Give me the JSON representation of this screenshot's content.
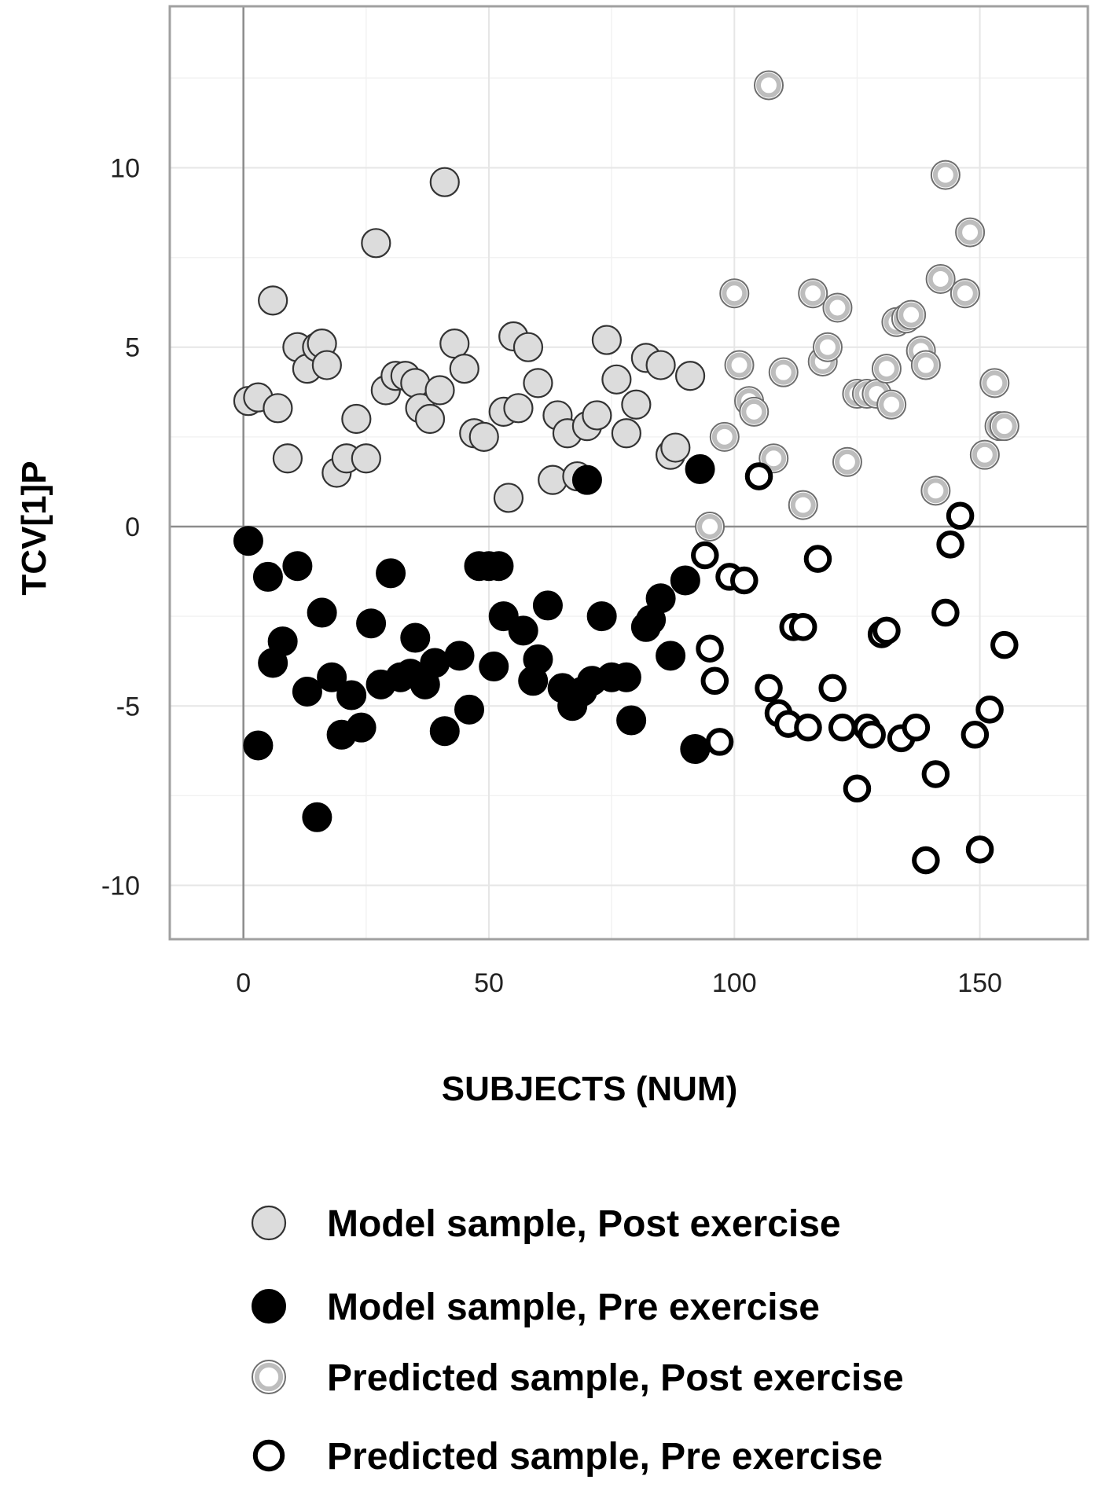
{
  "chart_data": {
    "type": "scatter",
    "title": "",
    "xlabel": "SUBJECTS (NUM)",
    "ylabel": "TCV[1]P",
    "xlim": [
      -15,
      172
    ],
    "ylim": [
      -11.5,
      14.5
    ],
    "xticks": [
      0,
      50,
      100,
      150
    ],
    "yticks": [
      10,
      5,
      0,
      -5,
      -10
    ],
    "grid": true,
    "zero_lines": true,
    "legend_position": "bottom",
    "series": [
      {
        "name": "Model sample, Post exercise",
        "style": "filled-light",
        "color": "#d9d9d9",
        "points": [
          [
            1,
            3.5
          ],
          [
            3,
            3.6
          ],
          [
            6,
            6.3
          ],
          [
            7,
            3.3
          ],
          [
            9,
            1.9
          ],
          [
            11,
            5.0
          ],
          [
            13,
            4.4
          ],
          [
            15,
            5.0
          ],
          [
            16,
            5.1
          ],
          [
            17,
            4.5
          ],
          [
            19,
            1.5
          ],
          [
            21,
            1.9
          ],
          [
            23,
            3.0
          ],
          [
            25,
            1.9
          ],
          [
            27,
            7.9
          ],
          [
            29,
            3.8
          ],
          [
            31,
            4.2
          ],
          [
            33,
            4.2
          ],
          [
            35,
            4.0
          ],
          [
            36,
            3.3
          ],
          [
            38,
            3.0
          ],
          [
            40,
            3.8
          ],
          [
            41,
            9.6
          ],
          [
            43,
            5.1
          ],
          [
            45,
            4.4
          ],
          [
            47,
            2.6
          ],
          [
            49,
            2.5
          ],
          [
            53,
            3.2
          ],
          [
            54,
            0.8
          ],
          [
            55,
            5.3
          ],
          [
            56,
            3.3
          ],
          [
            58,
            5.0
          ],
          [
            60,
            4.0
          ],
          [
            63,
            1.3
          ],
          [
            64,
            3.1
          ],
          [
            66,
            2.6
          ],
          [
            68,
            1.4
          ],
          [
            70,
            2.8
          ],
          [
            72,
            3.1
          ],
          [
            74,
            5.2
          ],
          [
            76,
            4.1
          ],
          [
            78,
            2.6
          ],
          [
            80,
            3.4
          ],
          [
            82,
            4.7
          ],
          [
            85,
            4.5
          ],
          [
            87,
            2.0
          ],
          [
            88,
            2.2
          ],
          [
            91,
            4.2
          ]
        ]
      },
      {
        "name": "Model sample, Pre exercise",
        "style": "filled-dark",
        "color": "#000000",
        "points": [
          [
            1,
            -0.4
          ],
          [
            3,
            -6.1
          ],
          [
            5,
            -1.4
          ],
          [
            6,
            -3.8
          ],
          [
            8,
            -3.2
          ],
          [
            11,
            -1.1
          ],
          [
            13,
            -4.6
          ],
          [
            15,
            -8.1
          ],
          [
            16,
            -2.4
          ],
          [
            18,
            -4.2
          ],
          [
            20,
            -5.8
          ],
          [
            22,
            -4.7
          ],
          [
            24,
            -5.6
          ],
          [
            26,
            -2.7
          ],
          [
            28,
            -4.4
          ],
          [
            30,
            -1.3
          ],
          [
            32,
            -4.2
          ],
          [
            34,
            -4.1
          ],
          [
            35,
            -3.1
          ],
          [
            37,
            -4.4
          ],
          [
            39,
            -3.8
          ],
          [
            41,
            -5.7
          ],
          [
            44,
            -3.6
          ],
          [
            46,
            -5.1
          ],
          [
            48,
            -1.1
          ],
          [
            50,
            -1.1
          ],
          [
            51,
            -3.9
          ],
          [
            52,
            -1.1
          ],
          [
            53,
            -2.5
          ],
          [
            57,
            -2.9
          ],
          [
            59,
            -4.3
          ],
          [
            60,
            -3.7
          ],
          [
            62,
            -2.2
          ],
          [
            65,
            -4.5
          ],
          [
            67,
            -5.0
          ],
          [
            69,
            -4.6
          ],
          [
            70,
            1.3
          ],
          [
            71,
            -4.3
          ],
          [
            73,
            -2.5
          ],
          [
            75,
            -4.2
          ],
          [
            78,
            -4.2
          ],
          [
            79,
            -5.4
          ],
          [
            82,
            -2.8
          ],
          [
            83,
            -2.6
          ],
          [
            85,
            -2.0
          ],
          [
            87,
            -3.6
          ],
          [
            90,
            -1.5
          ],
          [
            92,
            -6.2
          ],
          [
            93,
            1.6
          ]
        ]
      },
      {
        "name": "Predicted sample, Post exercise",
        "style": "ring-light",
        "color": "#a6a6a6",
        "points": [
          [
            95,
            0.0
          ],
          [
            98,
            2.5
          ],
          [
            100,
            6.5
          ],
          [
            101,
            4.5
          ],
          [
            103,
            3.5
          ],
          [
            104,
            3.2
          ],
          [
            108,
            1.9
          ],
          [
            110,
            4.3
          ],
          [
            114,
            0.6
          ],
          [
            116,
            6.5
          ],
          [
            118,
            4.6
          ],
          [
            119,
            5.0
          ],
          [
            121,
            6.1
          ],
          [
            123,
            1.8
          ],
          [
            125,
            3.7
          ],
          [
            127,
            3.7
          ],
          [
            129,
            3.7
          ],
          [
            131,
            4.4
          ],
          [
            132,
            3.4
          ],
          [
            133,
            5.7
          ],
          [
            135,
            5.8
          ],
          [
            136,
            5.9
          ],
          [
            138,
            4.9
          ],
          [
            139,
            4.5
          ],
          [
            141,
            1.0
          ],
          [
            142,
            6.9
          ],
          [
            143,
            9.8
          ],
          [
            147,
            6.5
          ],
          [
            148,
            8.2
          ],
          [
            151,
            2.0
          ],
          [
            153,
            4.0
          ],
          [
            154,
            2.8
          ],
          [
            155,
            2.8
          ],
          [
            107,
            12.3
          ]
        ]
      },
      {
        "name": "Predicted sample, Pre exercise",
        "style": "ring-dark",
        "color": "#000000",
        "points": [
          [
            94,
            -0.8
          ],
          [
            95,
            -3.4
          ],
          [
            96,
            -4.3
          ],
          [
            97,
            -6.0
          ],
          [
            99,
            -1.4
          ],
          [
            102,
            -1.5
          ],
          [
            105,
            1.4
          ],
          [
            107,
            -4.5
          ],
          [
            109,
            -5.2
          ],
          [
            111,
            -5.5
          ],
          [
            112,
            -2.8
          ],
          [
            114,
            -2.8
          ],
          [
            115,
            -5.6
          ],
          [
            117,
            -0.9
          ],
          [
            120,
            -4.5
          ],
          [
            122,
            -5.6
          ],
          [
            125,
            -7.3
          ],
          [
            127,
            -5.6
          ],
          [
            128,
            -5.8
          ],
          [
            130,
            -3.0
          ],
          [
            131,
            -2.9
          ],
          [
            134,
            -5.9
          ],
          [
            137,
            -5.6
          ],
          [
            139,
            -9.3
          ],
          [
            141,
            -6.9
          ],
          [
            143,
            -2.4
          ],
          [
            144,
            -0.5
          ],
          [
            146,
            0.3
          ],
          [
            149,
            -5.8
          ],
          [
            150,
            -9.0
          ],
          [
            152,
            -5.1
          ],
          [
            155,
            -3.3
          ]
        ]
      }
    ]
  }
}
